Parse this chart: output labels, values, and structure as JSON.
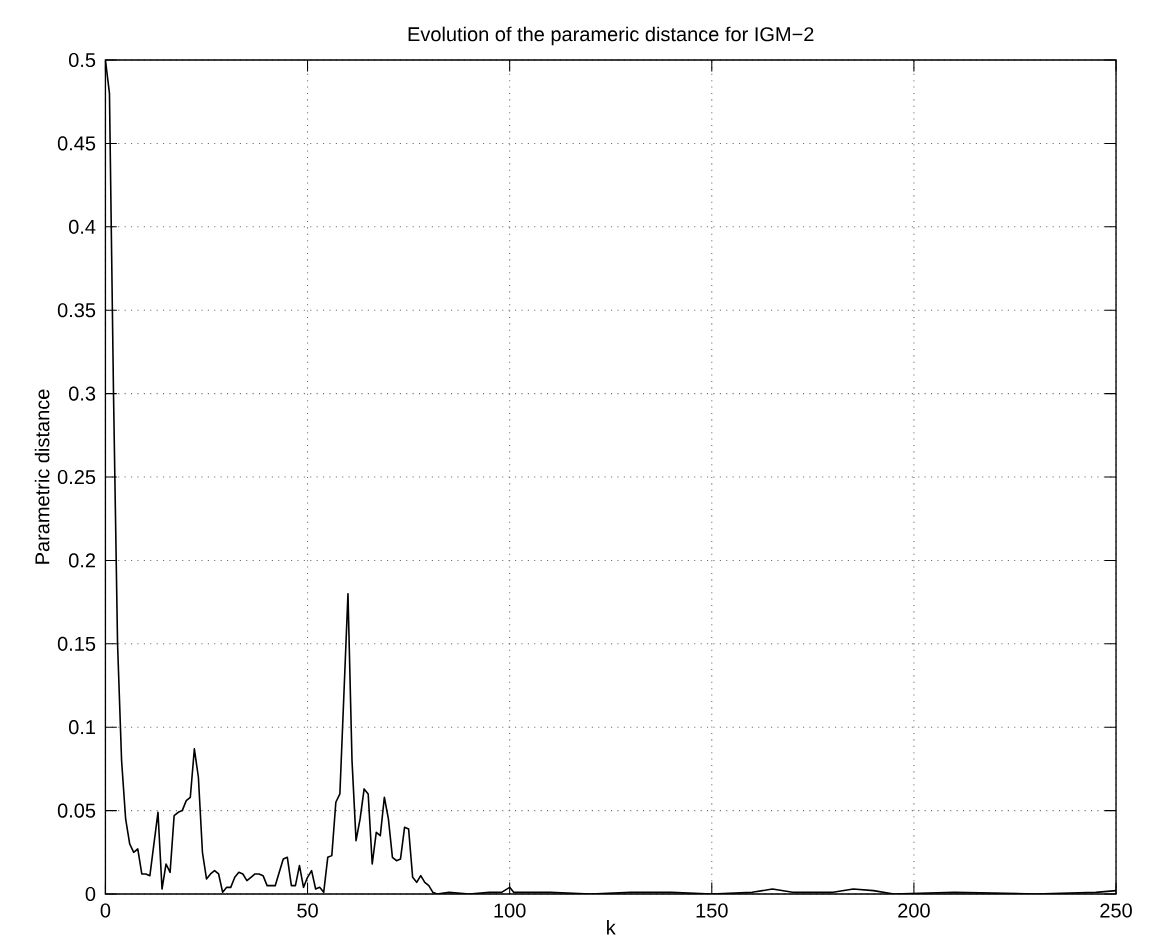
{
  "chart_data": {
    "type": "line",
    "title": "Evolution of the parameric distance for IGM−2",
    "xlabel": "k",
    "ylabel": "Parametric distance",
    "xlim": [
      0,
      250
    ],
    "ylim": [
      0,
      0.5
    ],
    "xticks": [
      0,
      50,
      100,
      150,
      200,
      250
    ],
    "yticks": [
      0,
      0.05,
      0.1,
      0.15,
      0.2,
      0.25,
      0.3,
      0.35,
      0.4,
      0.45,
      0.5
    ],
    "grid": true,
    "line_style": "solid",
    "marker": "none",
    "x": [
      0,
      1,
      2,
      3,
      4,
      5,
      6,
      7,
      8,
      9,
      10,
      11,
      12,
      13,
      14,
      15,
      16,
      17,
      18,
      19,
      20,
      21,
      22,
      23,
      24,
      25,
      26,
      27,
      28,
      29,
      30,
      31,
      32,
      33,
      34,
      35,
      36,
      37,
      38,
      39,
      40,
      41,
      42,
      43,
      44,
      45,
      46,
      47,
      48,
      49,
      50,
      51,
      52,
      53,
      54,
      55,
      56,
      57,
      58,
      59,
      60,
      61,
      62,
      63,
      64,
      65,
      66,
      67,
      68,
      69,
      70,
      71,
      72,
      73,
      74,
      75,
      76,
      77,
      78,
      79,
      80,
      81,
      82,
      85,
      90,
      95,
      98,
      100,
      101,
      110,
      120,
      130,
      140,
      150,
      160,
      165,
      170,
      180,
      185,
      190,
      195,
      210,
      230,
      245,
      250
    ],
    "series": [
      {
        "color": "#000000",
        "values": [
          0.5,
          0.48,
          0.3,
          0.15,
          0.08,
          0.045,
          0.03,
          0.025,
          0.027,
          0.012,
          0.012,
          0.011,
          0.03,
          0.049,
          0.003,
          0.018,
          0.013,
          0.047,
          0.049,
          0.05,
          0.056,
          0.058,
          0.087,
          0.07,
          0.025,
          0.009,
          0.012,
          0.014,
          0.012,
          0.001,
          0.004,
          0.004,
          0.01,
          0.013,
          0.012,
          0.008,
          0.01,
          0.012,
          0.012,
          0.011,
          0.005,
          0.005,
          0.005,
          0.013,
          0.021,
          0.022,
          0.005,
          0.005,
          0.017,
          0.004,
          0.01,
          0.014,
          0.003,
          0.004,
          0.001,
          0.022,
          0.023,
          0.055,
          0.06,
          0.12,
          0.18,
          0.08,
          0.032,
          0.045,
          0.063,
          0.06,
          0.018,
          0.037,
          0.035,
          0.058,
          0.045,
          0.022,
          0.02,
          0.021,
          0.04,
          0.039,
          0.01,
          0.007,
          0.011,
          0.007,
          0.005,
          0.001,
          0.0,
          0.001,
          0.0,
          0.001,
          0.001,
          0.004,
          0.001,
          0.001,
          0.0,
          0.001,
          0.001,
          0.0,
          0.001,
          0.003,
          0.001,
          0.001,
          0.003,
          0.002,
          0.0,
          0.001,
          0.0,
          0.001,
          0.002
        ]
      }
    ]
  }
}
